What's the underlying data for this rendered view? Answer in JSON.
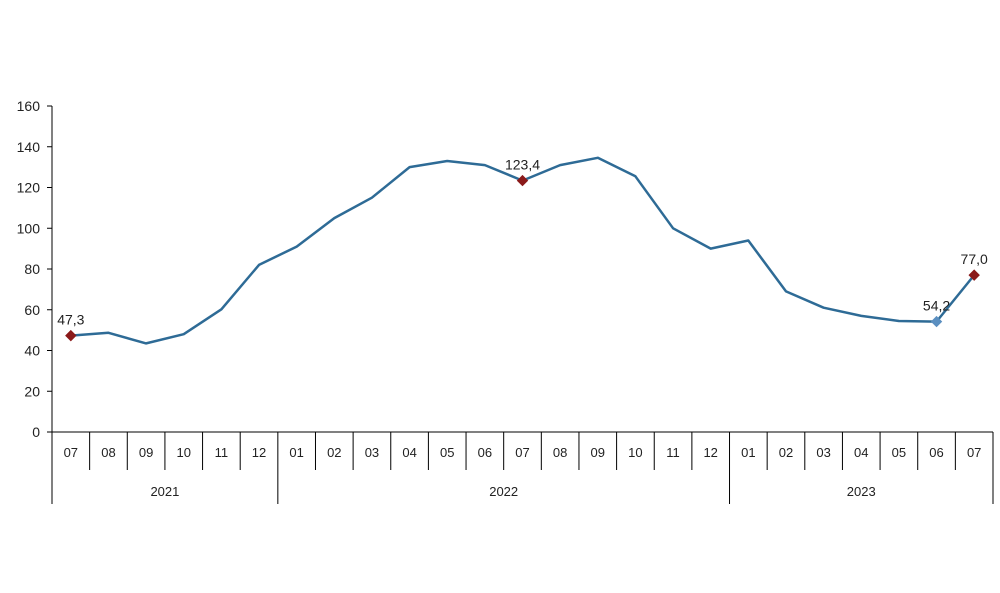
{
  "chart_data": {
    "type": "line",
    "title": "",
    "xlabel": "",
    "ylabel": "",
    "ylim": [
      0,
      160
    ],
    "y_ticks": [
      "0",
      "20",
      "40",
      "60",
      "80",
      "100",
      "120",
      "140",
      "160"
    ],
    "grid": false,
    "legend": "none",
    "months": [
      "07",
      "08",
      "09",
      "10",
      "11",
      "12",
      "01",
      "02",
      "03",
      "04",
      "05",
      "06",
      "07",
      "08",
      "09",
      "10",
      "11",
      "12",
      "01",
      "02",
      "03",
      "04",
      "05",
      "06",
      "07"
    ],
    "years": [
      {
        "label": "2021",
        "start": 0,
        "end": 5
      },
      {
        "label": "2022",
        "start": 6,
        "end": 17
      },
      {
        "label": "2023",
        "start": 18,
        "end": 24
      }
    ],
    "series": [
      {
        "color": "#2e6b96",
        "values": [
          47.3,
          48.7,
          43.5,
          48.0,
          60.2,
          82.0,
          91.0,
          105.0,
          115.0,
          130.0,
          133.0,
          131.0,
          123.4,
          131.0,
          134.6,
          125.5,
          100.0,
          90.0,
          94.0,
          69.0,
          61.0,
          57.0,
          54.5,
          54.2,
          77.0
        ]
      }
    ],
    "highlights": [
      {
        "index": 0,
        "label": "47,3",
        "color": "#8b1a1a"
      },
      {
        "index": 12,
        "label": "123,4",
        "color": "#8b1a1a"
      },
      {
        "index": 23,
        "label": "54,2",
        "color": "#5b8fc0"
      },
      {
        "index": 24,
        "label": "77,0",
        "color": "#8b1a1a"
      }
    ]
  }
}
